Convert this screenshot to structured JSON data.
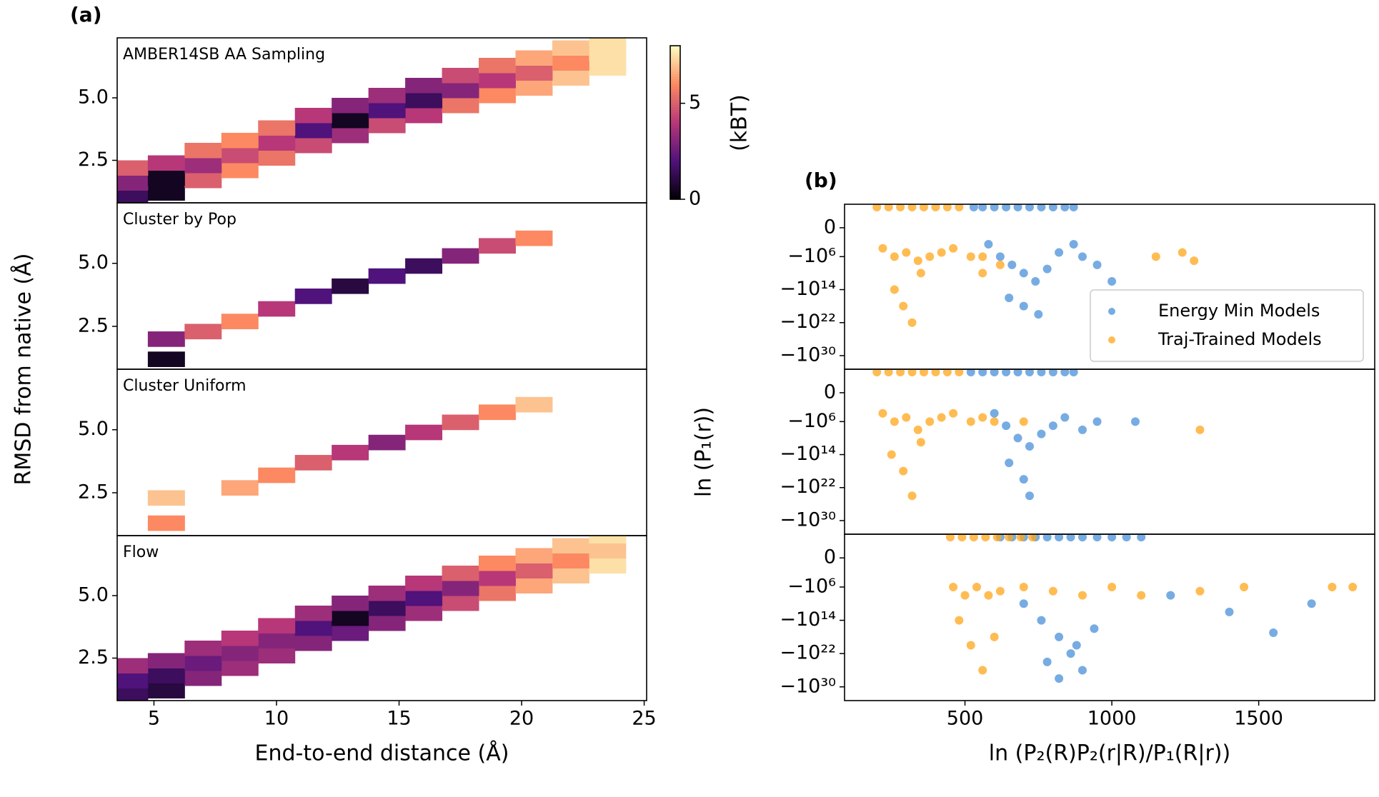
{
  "chart_data": [
    {
      "type": "heatmap",
      "panel_label": "(a)",
      "title": "AMBER14SB AA Sampling",
      "ylabel": "RMSD from native (Å)",
      "cmap": "magma",
      "xlim": [
        3.5,
        25.1
      ],
      "ylim": [
        0.8,
        7.4
      ],
      "yticks": [
        2.5,
        {
          "value": 5,
          "label": "5.0"
        }
      ],
      "colorbar": {
        "label": "(kBT)",
        "clim": [
          0,
          8
        ],
        "ticks": [
          0,
          5
        ]
      },
      "x": [
        4,
        5.5,
        7,
        8.5,
        10,
        11.5,
        13,
        14.5,
        16,
        17.5,
        19,
        20.5,
        22,
        23.5,
        4,
        5.5,
        7,
        8.5,
        10,
        11.5,
        13,
        14.5,
        16,
        17.5,
        19,
        20.5,
        22,
        23.5,
        4,
        5.5,
        7,
        8.5,
        10,
        11.5,
        13,
        14.5,
        16,
        17.5,
        19,
        20.5,
        22,
        23.5
      ],
      "y": [
        1.0,
        1.2,
        1.7,
        2.1,
        2.6,
        3.1,
        3.5,
        3.9,
        4.3,
        4.7,
        5.1,
        5.4,
        5.8,
        6.2,
        1.6,
        1.8,
        2.3,
        2.7,
        3.2,
        3.7,
        4.1,
        4.5,
        4.9,
        5.3,
        5.7,
        6.0,
        6.4,
        6.8,
        2.2,
        2.4,
        2.9,
        3.3,
        3.8,
        4.3,
        4.7,
        5.1,
        5.5,
        5.9,
        6.3,
        6.6,
        7.0,
        7.4
      ],
      "values": [
        1.5,
        0.5,
        5,
        6,
        5.5,
        4.5,
        3.5,
        4.5,
        4,
        5.5,
        6,
        6.5,
        7,
        7.5,
        3,
        0.5,
        3.5,
        4.5,
        4,
        2,
        0.5,
        2,
        1.5,
        3,
        4,
        5,
        6,
        7.5,
        5,
        4,
        5.5,
        6,
        5.5,
        4,
        3,
        3.5,
        3,
        4.5,
        5.5,
        6.5,
        7,
        7.5
      ]
    },
    {
      "type": "heatmap",
      "title": "Cluster by Pop",
      "cmap": "magma",
      "xlim": [
        3.5,
        25.1
      ],
      "ylim": [
        0.8,
        7.4
      ],
      "yticks": [
        2.5,
        {
          "value": 5,
          "label": "5.0"
        }
      ],
      "x": [
        5.5,
        5.5,
        7,
        8.5,
        10,
        11.5,
        13,
        14.5,
        16,
        17.5,
        19,
        20.5
      ],
      "y": [
        1.2,
        2.0,
        2.3,
        2.7,
        3.2,
        3.7,
        4.1,
        4.5,
        4.9,
        5.3,
        5.7,
        6.0
      ],
      "values": [
        0.5,
        3,
        5,
        6,
        4,
        2,
        1,
        2,
        1.5,
        3,
        4.5,
        6
      ]
    },
    {
      "type": "heatmap",
      "title": "Cluster Uniform",
      "cmap": "magma",
      "xlim": [
        3.5,
        25.1
      ],
      "ylim": [
        0.8,
        7.4
      ],
      "yticks": [
        2.5,
        {
          "value": 5,
          "label": "5.0"
        }
      ],
      "x": [
        5.5,
        5.5,
        8.5,
        10,
        11.5,
        13,
        14.5,
        16,
        17.5,
        19,
        20.5
      ],
      "y": [
        1.3,
        2.3,
        2.7,
        3.2,
        3.7,
        4.1,
        4.5,
        4.9,
        5.3,
        5.7,
        6.0
      ],
      "values": [
        6,
        7,
        6.5,
        6,
        5,
        4,
        3,
        4,
        5,
        6,
        7
      ]
    },
    {
      "type": "heatmap",
      "title": "Flow",
      "xlabel": "End-to-end distance (Å)",
      "cmap": "magma",
      "xlim": [
        3.5,
        25.1
      ],
      "ylim": [
        0.8,
        7.4
      ],
      "yticks": [
        2.5,
        {
          "value": 5,
          "label": "5.0"
        }
      ],
      "xticks": [
        5,
        10,
        15,
        20,
        25
      ],
      "x": [
        4,
        5.5,
        7,
        8.5,
        10,
        11.5,
        13,
        14.5,
        16,
        17.5,
        19,
        20.5,
        22,
        23.5,
        4,
        5.5,
        7,
        8.5,
        10,
        11.5,
        13,
        14.5,
        16,
        17.5,
        19,
        20.5,
        22,
        23.5,
        4,
        5.5,
        7,
        8.5,
        10,
        11.5,
        13,
        14.5,
        16,
        17.5,
        19,
        20.5,
        22,
        23.5
      ],
      "y": [
        1.0,
        1.2,
        1.7,
        2.1,
        2.6,
        3.1,
        3.5,
        3.9,
        4.3,
        4.7,
        5.1,
        5.4,
        5.8,
        6.2,
        1.6,
        1.8,
        2.3,
        2.7,
        3.2,
        3.7,
        4.1,
        4.5,
        4.9,
        5.3,
        5.7,
        6.0,
        6.4,
        6.8,
        2.2,
        2.4,
        2.9,
        3.3,
        3.8,
        4.3,
        4.7,
        5.1,
        5.5,
        5.9,
        6.3,
        6.6,
        7.0,
        7.4
      ],
      "values": [
        1.5,
        1,
        3,
        3.5,
        3.5,
        3,
        2.5,
        3,
        3.5,
        4.5,
        5.5,
        6.5,
        7,
        7.5,
        2,
        1.5,
        2.5,
        3,
        3,
        2,
        0.5,
        1.5,
        2,
        3,
        4,
        5,
        6,
        7,
        3.5,
        3,
        3.5,
        4,
        4,
        3.5,
        3,
        3.5,
        4,
        5,
        6,
        6.5,
        7,
        7.5
      ]
    },
    {
      "type": "scatter",
      "panel_label": "(b)",
      "yscale": "symlog",
      "legend": "lower right",
      "xlim": [
        90,
        1895
      ],
      "ylim": [
        -2e+33,
        50000
      ],
      "yticks": [
        0,
        {
          "value": -1000000.0,
          "label": "−10⁶"
        },
        {
          "value": -100000000000000.0,
          "label": "−10¹⁴"
        },
        {
          "value": -1e+22,
          "label": "−10²²"
        },
        {
          "value": -1e+30,
          "label": "−10³⁰"
        }
      ],
      "series": [
        {
          "name": "Energy Min Models",
          "color": "#4a90d9",
          "x": [
            530,
            560,
            600,
            640,
            680,
            720,
            760,
            800,
            840,
            870,
            580,
            620,
            660,
            700,
            740,
            780,
            820,
            650,
            700,
            750,
            900,
            950,
            1000,
            870
          ],
          "values": [
            10000.0,
            10000.0,
            10000.0,
            10000.0,
            10000.0,
            10000.0,
            10000.0,
            10000.0,
            10000.0,
            10000.0,
            -1000.0,
            -1000000.0,
            -100000000.0,
            -10000000000.0,
            -1000000000000.0,
            -1000000000.0,
            -100000.0,
            -1e+16,
            -1e+18,
            -1e+20,
            -1000000.0,
            -100000000.0,
            -1000000000000.0,
            -1000.0
          ]
        },
        {
          "name": "Traj-Trained Models",
          "color": "#ffa51a",
          "x": [
            200,
            240,
            280,
            320,
            360,
            400,
            440,
            480,
            220,
            260,
            300,
            340,
            380,
            420,
            460,
            520,
            560,
            260,
            290,
            320,
            350,
            560,
            620,
            1150,
            1240,
            1280
          ],
          "values": [
            10000.0,
            10000.0,
            10000.0,
            10000.0,
            10000.0,
            10000.0,
            10000.0,
            10000.0,
            -10000.0,
            -1000000.0,
            -100000.0,
            -10000000.0,
            -1000000.0,
            -100000.0,
            -10000.0,
            -1000000.0,
            -1000000.0,
            -100000000000000.0,
            -1e+18,
            -1e+22,
            -10000000000.0,
            -10000000000.0,
            -100000000.0,
            -1000000.0,
            -100000.0,
            -10000000.0
          ]
        }
      ]
    },
    {
      "type": "scatter",
      "yscale": "symlog",
      "ylabel": "ln (P₁(r))",
      "xlim": [
        90,
        1895
      ],
      "ylim": [
        -2e+33,
        50000
      ],
      "yticks": [
        0,
        {
          "value": -1000000.0,
          "label": "−10⁶"
        },
        {
          "value": -100000000000000.0,
          "label": "−10¹⁴"
        },
        {
          "value": -1e+22,
          "label": "−10²²"
        },
        {
          "value": -1e+30,
          "label": "−10³⁰"
        }
      ],
      "series": [
        {
          "name": null,
          "color": "#4a90d9",
          "x": [
            520,
            560,
            600,
            640,
            680,
            720,
            760,
            800,
            840,
            870,
            600,
            640,
            680,
            720,
            760,
            800,
            840,
            650,
            700,
            720,
            900,
            950,
            1080
          ],
          "values": [
            10000.0,
            10000.0,
            10000.0,
            10000.0,
            10000.0,
            10000.0,
            10000.0,
            10000.0,
            10000.0,
            10000.0,
            -10000.0,
            -10000000.0,
            -10000000000.0,
            -1000000000000.0,
            -1000000000.0,
            -10000000.0,
            -100000.0,
            -1e+16,
            -1e+20,
            -1e+24,
            -100000000.0,
            -1000000.0,
            -1000000.0
          ]
        },
        {
          "name": null,
          "color": "#ffa51a",
          "x": [
            200,
            240,
            280,
            320,
            360,
            400,
            440,
            480,
            220,
            260,
            300,
            340,
            380,
            420,
            460,
            520,
            560,
            250,
            290,
            320,
            350,
            600,
            700,
            1300
          ],
          "values": [
            10000.0,
            10000.0,
            10000.0,
            10000.0,
            10000.0,
            10000.0,
            10000.0,
            10000.0,
            -10000.0,
            -1000000.0,
            -100000.0,
            -100000000.0,
            -1000000.0,
            -100000.0,
            -10000.0,
            -1000000.0,
            -100000.0,
            -100000000000000.0,
            -1e+18,
            -1e+24,
            -100000000000.0,
            -1000000.0,
            -1000000.0,
            -100000000.0
          ]
        }
      ]
    },
    {
      "type": "scatter",
      "yscale": "symlog",
      "xlabel": "ln (P₂(R)P₂(r|R)/P₁(R|r))",
      "xlim": [
        90,
        1895
      ],
      "ylim": [
        -2e+33,
        50000
      ],
      "xticks": [
        500,
        1000,
        1500
      ],
      "yticks": [
        0,
        {
          "value": -1000000.0,
          "label": "−10⁶"
        },
        {
          "value": -100000000000000.0,
          "label": "−10¹⁴"
        },
        {
          "value": -1e+22,
          "label": "−10²²"
        },
        {
          "value": -1e+30,
          "label": "−10³⁰"
        }
      ],
      "series": [
        {
          "name": null,
          "color": "#4a90d9",
          "x": [
            620,
            660,
            700,
            740,
            780,
            820,
            860,
            900,
            950,
            1000,
            1050,
            1100,
            700,
            760,
            820,
            880,
            940,
            780,
            820,
            860,
            900,
            1200,
            1400,
            1550,
            1680
          ],
          "values": [
            10000.0,
            10000.0,
            10000.0,
            10000.0,
            10000.0,
            10000.0,
            10000.0,
            10000.0,
            10000.0,
            10000.0,
            10000.0,
            10000.0,
            -10000000000.0,
            -100000000000000.0,
            -1e+18,
            -1e+20,
            -1e+16,
            -1e+24,
            -1e+28,
            -1e+22,
            -1e+26,
            -100000000.0,
            -1000000000000.0,
            -1e+17,
            -10000000000.0
          ]
        },
        {
          "name": null,
          "color": "#ffa51a",
          "x": [
            450,
            490,
            530,
            570,
            610,
            650,
            690,
            730,
            460,
            500,
            540,
            580,
            620,
            700,
            800,
            900,
            1000,
            1100,
            480,
            520,
            560,
            600,
            1300,
            1450,
            1750,
            1820
          ],
          "values": [
            10000.0,
            10000.0,
            10000.0,
            10000.0,
            10000.0,
            10000.0,
            10000.0,
            10000.0,
            -1000000.0,
            -100000000.0,
            -1000000.0,
            -100000000.0,
            -10000000.0,
            -1000000.0,
            -10000000.0,
            -100000000.0,
            -1000000.0,
            -100000000.0,
            -100000000000000.0,
            -1e+20,
            -1e+26,
            -1e+18,
            -10000000.0,
            -1000000.0,
            -1000000.0,
            -1000000.0
          ]
        }
      ]
    }
  ]
}
